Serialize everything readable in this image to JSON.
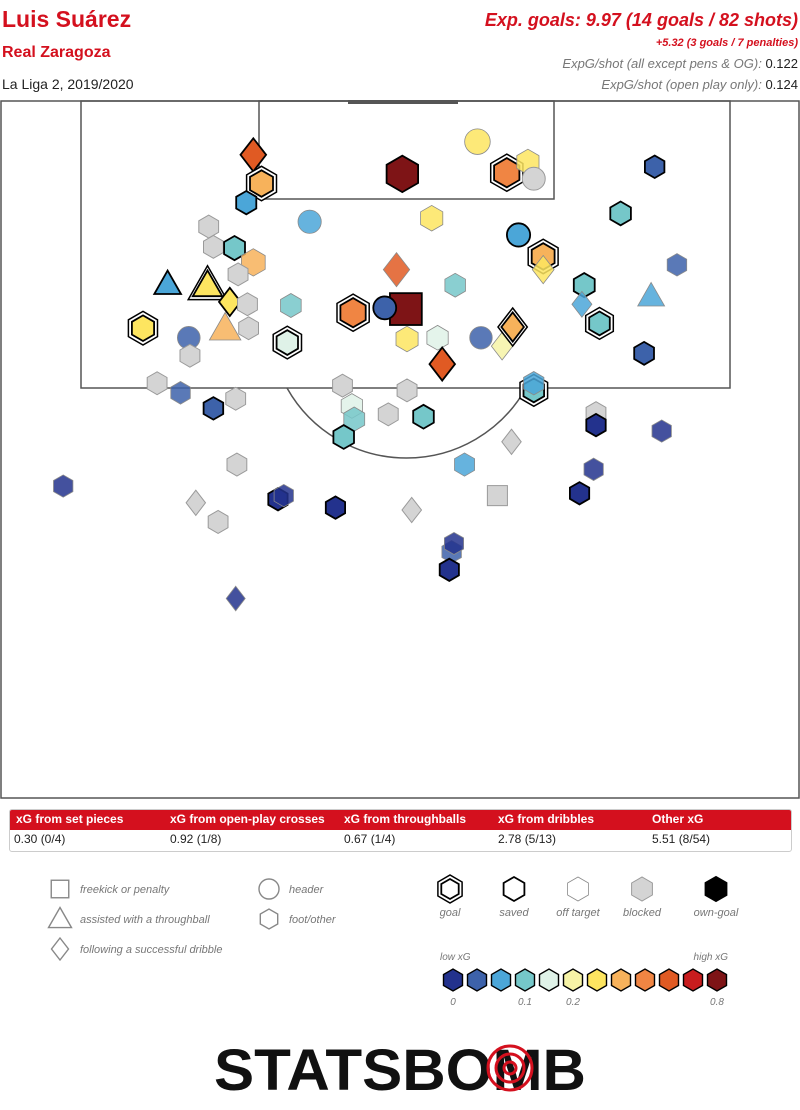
{
  "header": {
    "player": "Luis Suárez",
    "team": "Real Zaragoza",
    "competition": "La Liga 2, 2019/2020",
    "xg_title": "Exp. goals: 9.97 (14 goals / 82 shots)",
    "xg_penalties": "+5.32 (3 goals / 7 penalties)",
    "stat1_label": "ExpG/shot (all except pens & OG):",
    "stat1_value": "0.122",
    "stat2_label": "ExpG/shot (open play only):",
    "stat2_value": "0.124"
  },
  "breakdown": {
    "headers": [
      "xG from set pieces",
      "xG from open-play crosses",
      "xG from throughballs",
      "xG from dribbles",
      "Other xG"
    ],
    "values": [
      "0.30 (0/4)",
      "0.92 (1/8)",
      "0.67 (1/4)",
      "2.78 (5/13)",
      "5.51 (8/54)"
    ]
  },
  "legend": {
    "shape_items": [
      {
        "shape": "square",
        "label": "freekick or penalty"
      },
      {
        "shape": "triangle",
        "label": "assisted with a throughball"
      },
      {
        "shape": "diamond",
        "label": "following a successful dribble"
      },
      {
        "shape": "circle",
        "label": "header"
      },
      {
        "shape": "hexagon",
        "label": "foot/other"
      }
    ],
    "outcome_items": [
      {
        "outcome": "goal",
        "label": "goal"
      },
      {
        "outcome": "saved",
        "label": "saved"
      },
      {
        "outcome": "off",
        "label": "off target"
      },
      {
        "outcome": "blocked",
        "label": "blocked"
      },
      {
        "outcome": "own",
        "label": "own-goal"
      }
    ],
    "low_label": "low xG",
    "high_label": "high xG",
    "scale_ticks": [
      {
        "index": 0,
        "label": "0"
      },
      {
        "index": 3,
        "label": "0.1"
      },
      {
        "index": 5,
        "label": "0.2"
      },
      {
        "index": 11,
        "label": "0.8"
      }
    ],
    "scale_colors": [
      "#23328d",
      "#3d62aa",
      "#4ba6d8",
      "#75c7c9",
      "#dff2e8",
      "#f6f3a6",
      "#fde560",
      "#f7b25b",
      "#f08543",
      "#e05a23",
      "#c81d1e",
      "#7e1416"
    ]
  },
  "brand": {
    "logo_text": "STATSBOMB"
  },
  "colors": {
    "accent": "#d4101e",
    "blocked": "#d4d4d4",
    "grid": "#555555"
  },
  "chart_data": {
    "type": "scatter",
    "title": "Exp. goals: 9.97 (14 goals / 82 shots)",
    "coordinate_system": "half pitch, x = metres across the pitch from left touchline (0-68), y = metres from goal line (0-60)",
    "shots": [
      {
        "x": 21.5,
        "y": 4.5,
        "shape": "diamond",
        "outcome": "saved",
        "xg": 0.45
      },
      {
        "x": 22.2,
        "y": 6.9,
        "shape": "hexagon",
        "outcome": "goal",
        "xg": 0.25
      },
      {
        "x": 20.9,
        "y": 8.5,
        "shape": "hexagon",
        "outcome": "saved",
        "xg": 0.07
      },
      {
        "x": 17.7,
        "y": 10.5,
        "shape": "hexagon",
        "outcome": "blocked",
        "xg": 0.05
      },
      {
        "x": 26.3,
        "y": 10.1,
        "shape": "circle",
        "outcome": "off",
        "xg": 0.07
      },
      {
        "x": 18.1,
        "y": 12.2,
        "shape": "hexagon",
        "outcome": "blocked",
        "xg": 0.05
      },
      {
        "x": 19.9,
        "y": 12.3,
        "shape": "hexagon",
        "outcome": "saved",
        "xg": 0.12
      },
      {
        "x": 21.5,
        "y": 13.5,
        "shape": "hexagon",
        "outcome": "off",
        "xg": 0.3
      },
      {
        "x": 20.2,
        "y": 14.5,
        "shape": "hexagon",
        "outcome": "blocked",
        "xg": 0.05
      },
      {
        "x": 14.2,
        "y": 15.3,
        "shape": "triangle",
        "outcome": "saved",
        "xg": 0.07
      },
      {
        "x": 17.6,
        "y": 15.4,
        "shape": "triangle",
        "outcome": "goal",
        "xg": 0.2
      },
      {
        "x": 19.5,
        "y": 16.8,
        "shape": "diamond",
        "outcome": "saved",
        "xg": 0.2
      },
      {
        "x": 21.0,
        "y": 17.0,
        "shape": "hexagon",
        "outcome": "blocked",
        "xg": 0.05
      },
      {
        "x": 24.7,
        "y": 17.1,
        "shape": "hexagon",
        "outcome": "off",
        "xg": 0.11
      },
      {
        "x": 12.1,
        "y": 19.0,
        "shape": "hexagon",
        "outcome": "goal",
        "xg": 0.2
      },
      {
        "x": 16.0,
        "y": 19.8,
        "shape": "circle",
        "outcome": "off",
        "xg": 0.04
      },
      {
        "x": 19.1,
        "y": 19.0,
        "shape": "triangle",
        "outcome": "off",
        "xg": 0.3
      },
      {
        "x": 21.1,
        "y": 19.0,
        "shape": "hexagon",
        "outcome": "blocked",
        "xg": 0.05
      },
      {
        "x": 24.4,
        "y": 20.2,
        "shape": "hexagon",
        "outcome": "goal",
        "xg": 0.15
      },
      {
        "x": 16.1,
        "y": 21.3,
        "shape": "hexagon",
        "outcome": "blocked",
        "xg": 0.05
      },
      {
        "x": 13.3,
        "y": 23.6,
        "shape": "hexagon",
        "outcome": "blocked",
        "xg": 0.05
      },
      {
        "x": 15.3,
        "y": 24.4,
        "shape": "hexagon",
        "outcome": "off",
        "xg": 0.03
      },
      {
        "x": 18.1,
        "y": 25.7,
        "shape": "hexagon",
        "outcome": "saved",
        "xg": 0.03
      },
      {
        "x": 20.0,
        "y": 24.9,
        "shape": "hexagon",
        "outcome": "blocked",
        "xg": 0.05
      },
      {
        "x": 20.1,
        "y": 30.4,
        "shape": "hexagon",
        "outcome": "blocked",
        "xg": 0.05
      },
      {
        "x": 16.6,
        "y": 33.6,
        "shape": "diamond",
        "outcome": "blocked",
        "xg": 0.05
      },
      {
        "x": 18.5,
        "y": 35.2,
        "shape": "hexagon",
        "outcome": "blocked",
        "xg": 0.05
      },
      {
        "x": 23.6,
        "y": 33.3,
        "shape": "hexagon",
        "outcome": "saved",
        "xg": 0.02
      },
      {
        "x": 24.1,
        "y": 33.0,
        "shape": "hexagon",
        "outcome": "off",
        "xg": 0.02
      },
      {
        "x": 28.5,
        "y": 34.0,
        "shape": "hexagon",
        "outcome": "saved",
        "xg": 0.02
      },
      {
        "x": 20.0,
        "y": 41.6,
        "shape": "diamond",
        "outcome": "off",
        "xg": 0.02
      },
      {
        "x": 5.3,
        "y": 32.2,
        "shape": "hexagon",
        "outcome": "off",
        "xg": 0.02
      },
      {
        "x": 34.2,
        "y": 6.1,
        "shape": "hexagon",
        "outcome": "saved",
        "xg": 0.8
      },
      {
        "x": 40.6,
        "y": 3.4,
        "shape": "circle",
        "outcome": "off",
        "xg": 0.2
      },
      {
        "x": 43.1,
        "y": 6.0,
        "shape": "hexagon",
        "outcome": "goal",
        "xg": 0.4
      },
      {
        "x": 44.9,
        "y": 5.1,
        "shape": "hexagon",
        "outcome": "off",
        "xg": 0.2
      },
      {
        "x": 45.4,
        "y": 6.5,
        "shape": "circle",
        "outcome": "blocked",
        "xg": 0.05
      },
      {
        "x": 36.7,
        "y": 9.8,
        "shape": "hexagon",
        "outcome": "off",
        "xg": 0.2
      },
      {
        "x": 44.1,
        "y": 11.2,
        "shape": "circle",
        "outcome": "saved",
        "xg": 0.07
      },
      {
        "x": 46.2,
        "y": 13.0,
        "shape": "hexagon",
        "outcome": "goal",
        "xg": 0.25
      },
      {
        "x": 46.2,
        "y": 14.1,
        "shape": "diamond",
        "outcome": "off",
        "xg": 0.2
      },
      {
        "x": 38.7,
        "y": 15.4,
        "shape": "hexagon",
        "outcome": "off",
        "xg": 0.1
      },
      {
        "x": 33.7,
        "y": 14.1,
        "shape": "diamond",
        "outcome": "off",
        "xg": 0.5
      },
      {
        "x": 34.5,
        "y": 17.4,
        "shape": "square",
        "outcome": "saved",
        "xg": 0.8
      },
      {
        "x": 32.7,
        "y": 17.3,
        "shape": "circle",
        "outcome": "saved",
        "xg": 0.05
      },
      {
        "x": 30.0,
        "y": 17.7,
        "shape": "hexagon",
        "outcome": "goal",
        "xg": 0.4
      },
      {
        "x": 34.6,
        "y": 19.9,
        "shape": "hexagon",
        "outcome": "off",
        "xg": 0.2
      },
      {
        "x": 37.2,
        "y": 19.8,
        "shape": "hexagon",
        "outcome": "off",
        "xg": 0.15
      },
      {
        "x": 40.9,
        "y": 19.8,
        "shape": "circle",
        "outcome": "off",
        "xg": 0.03
      },
      {
        "x": 42.7,
        "y": 20.5,
        "shape": "diamond",
        "outcome": "off",
        "xg": 0.18
      },
      {
        "x": 43.6,
        "y": 18.9,
        "shape": "diamond",
        "outcome": "goal",
        "xg": 0.25
      },
      {
        "x": 37.6,
        "y": 22.0,
        "shape": "diamond",
        "outcome": "saved",
        "xg": 0.45
      },
      {
        "x": 34.6,
        "y": 24.2,
        "shape": "hexagon",
        "outcome": "blocked",
        "xg": 0.05
      },
      {
        "x": 29.1,
        "y": 23.8,
        "shape": "hexagon",
        "outcome": "blocked",
        "xg": 0.05
      },
      {
        "x": 29.9,
        "y": 25.5,
        "shape": "hexagon",
        "outcome": "off",
        "xg": 0.15
      },
      {
        "x": 30.1,
        "y": 26.6,
        "shape": "hexagon",
        "outcome": "off",
        "xg": 0.12
      },
      {
        "x": 33.0,
        "y": 26.2,
        "shape": "hexagon",
        "outcome": "blocked",
        "xg": 0.05
      },
      {
        "x": 36.0,
        "y": 26.4,
        "shape": "hexagon",
        "outcome": "saved",
        "xg": 0.1
      },
      {
        "x": 29.2,
        "y": 28.1,
        "shape": "hexagon",
        "outcome": "saved",
        "xg": 0.1
      },
      {
        "x": 39.5,
        "y": 30.4,
        "shape": "hexagon",
        "outcome": "off",
        "xg": 0.07
      },
      {
        "x": 43.5,
        "y": 28.5,
        "shape": "diamond",
        "outcome": "blocked",
        "xg": 0.05
      },
      {
        "x": 42.3,
        "y": 33.0,
        "shape": "square",
        "outcome": "blocked",
        "xg": 0.05
      },
      {
        "x": 35.0,
        "y": 34.2,
        "shape": "diamond",
        "outcome": "blocked",
        "xg": 0.05
      },
      {
        "x": 38.4,
        "y": 37.7,
        "shape": "hexagon",
        "outcome": "off",
        "xg": 0.03
      },
      {
        "x": 38.2,
        "y": 39.2,
        "shape": "hexagon",
        "outcome": "saved",
        "xg": 0.01
      },
      {
        "x": 55.7,
        "y": 5.5,
        "shape": "hexagon",
        "outcome": "saved",
        "xg": 0.03
      },
      {
        "x": 52.8,
        "y": 9.4,
        "shape": "hexagon",
        "outcome": "saved",
        "xg": 0.1
      },
      {
        "x": 49.7,
        "y": 15.4,
        "shape": "hexagon",
        "outcome": "saved",
        "xg": 0.12
      },
      {
        "x": 49.5,
        "y": 17.0,
        "shape": "diamond",
        "outcome": "off",
        "xg": 0.08
      },
      {
        "x": 51.0,
        "y": 18.6,
        "shape": "hexagon",
        "outcome": "goal",
        "xg": 0.1
      },
      {
        "x": 57.6,
        "y": 13.7,
        "shape": "hexagon",
        "outcome": "off",
        "xg": 0.03
      },
      {
        "x": 55.4,
        "y": 16.3,
        "shape": "triangle",
        "outcome": "off",
        "xg": 0.08
      },
      {
        "x": 54.8,
        "y": 21.1,
        "shape": "hexagon",
        "outcome": "saved",
        "xg": 0.05
      },
      {
        "x": 45.4,
        "y": 24.2,
        "shape": "hexagon",
        "outcome": "goal",
        "xg": 0.1
      },
      {
        "x": 45.4,
        "y": 23.6,
        "shape": "hexagon",
        "outcome": "off",
        "xg": 0.08
      },
      {
        "x": 50.7,
        "y": 26.1,
        "shape": "hexagon",
        "outcome": "blocked",
        "xg": 0.05
      },
      {
        "x": 50.7,
        "y": 27.1,
        "shape": "hexagon",
        "outcome": "saved",
        "xg": 0.02
      },
      {
        "x": 56.3,
        "y": 27.6,
        "shape": "hexagon",
        "outcome": "off",
        "xg": 0.02
      },
      {
        "x": 50.5,
        "y": 30.8,
        "shape": "hexagon",
        "outcome": "off",
        "xg": 0.02
      },
      {
        "x": 49.3,
        "y": 32.8,
        "shape": "hexagon",
        "outcome": "saved",
        "xg": 0.02
      },
      {
        "x": 38.6,
        "y": 37.0,
        "shape": "hexagon",
        "outcome": "off",
        "xg": 0.01
      }
    ]
  }
}
